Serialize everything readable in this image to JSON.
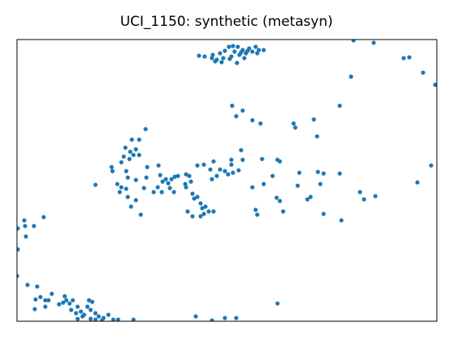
{
  "chart_data": {
    "type": "scatter",
    "title": "UCI_1150: synthetic (metasyn)",
    "xlim": [
      0,
      519
    ],
    "ylim": [
      0,
      349
    ],
    "series": [
      {
        "color": "#1f77b4",
        "x": [
          225,
          232,
          242,
          247,
          251,
          255,
          245,
          257,
          262,
          265,
          269,
          273,
          275,
          279,
          283,
          287,
          291,
          295,
          297,
          299,
          305,
          267,
          281,
          272,
          241,
          285,
          277,
          263,
          253,
          416,
          441,
          478,
          485,
          502,
          517,
          413,
          399,
          266,
          271,
          279,
          291,
          301,
          342,
          344,
          367,
          371,
          159,
          142,
          151,
          134,
          140,
          147,
          151,
          132,
          139,
          144,
          117,
          118,
          129,
          135,
          137,
          147,
          175,
          161,
          160,
          157,
          169,
          184,
          177,
          180,
          187,
          191,
          195,
          199,
          189,
          194,
          179,
          174,
          124,
          129,
          127,
          135,
          137,
          147,
          141,
          153,
          97,
          223,
          231,
          239,
          243,
          251,
          247,
          257,
          261,
          267,
          265,
          274,
          277,
          279,
          265,
          241,
          215,
          209,
          208,
          213,
          217,
          219,
          223,
          227,
          229,
          233,
          237,
          243,
          211,
          217,
          227,
          231,
          209,
          303,
          322,
          325,
          316,
          321,
          325,
          329,
          291,
          295,
          297,
          305,
          349,
          347,
          372,
          379,
          375,
          359,
          363,
          379,
          399,
          401,
          424,
          429,
          443,
          495,
          512,
          9,
          10,
          21,
          33,
          1,
          1,
          11,
          0,
          13,
          25,
          23,
          29,
          22,
          35,
          43,
          52,
          59,
          61,
          65,
          69,
          75,
          79,
          83,
          87,
          89,
          93,
          91,
          97,
          101,
          107,
          113,
          119,
          125,
          75,
          81,
          91,
          97,
          105,
          35,
          39,
          57,
          67,
          73,
          144,
          221,
          241,
          257,
          271,
          322
        ],
        "y": [
          329,
          328,
          330,
          324,
          332,
          326,
          322,
          335,
          340,
          328,
          334,
          340,
          330,
          336,
          332,
          338,
          334,
          340,
          332,
          336,
          336,
          341,
          326,
          320,
          326,
          335,
          333,
          325,
          321,
          348,
          345,
          326,
          327,
          308,
          293,
          303,
          267,
          267,
          254,
          261,
          249,
          245,
          245,
          240,
          250,
          229,
          238,
          225,
          225,
          215,
          210,
          213,
          206,
          204,
          201,
          206,
          191,
          186,
          197,
          186,
          178,
          175,
          193,
          191,
          178,
          165,
          160,
          176,
          181,
          173,
          171,
          176,
          179,
          180,
          165,
          160,
          160,
          166,
          170,
          166,
          160,
          164,
          154,
          150,
          142,
          132,
          169,
          193,
          194,
          188,
          198,
          188,
          180,
          186,
          182,
          184,
          194,
          187,
          212,
          200,
          200,
          176,
          173,
          166,
          170,
          180,
          158,
          152,
          154,
          146,
          140,
          142,
          136,
          136,
          136,
          130,
          130,
          133,
          182,
          201,
          200,
          198,
          180,
          153,
          149,
          136,
          166,
          138,
          132,
          170,
          184,
          168,
          185,
          183,
          170,
          151,
          154,
          133,
          183,
          125,
          160,
          151,
          155,
          172,
          193,
          125,
          118,
          118,
          129,
          115,
          89,
          105,
          56,
          45,
          43,
          27,
          30,
          15,
          26,
          34,
          21,
          31,
          26,
          22,
          26,
          18,
          12,
          8,
          18,
          26,
          24,
          14,
          10,
          6,
          4,
          8,
          2,
          2,
          3,
          6,
          3,
          2,
          1,
          18,
          26,
          23,
          14,
          10,
          2,
          6,
          1,
          4,
          4,
          22
        ]
      }
    ]
  }
}
